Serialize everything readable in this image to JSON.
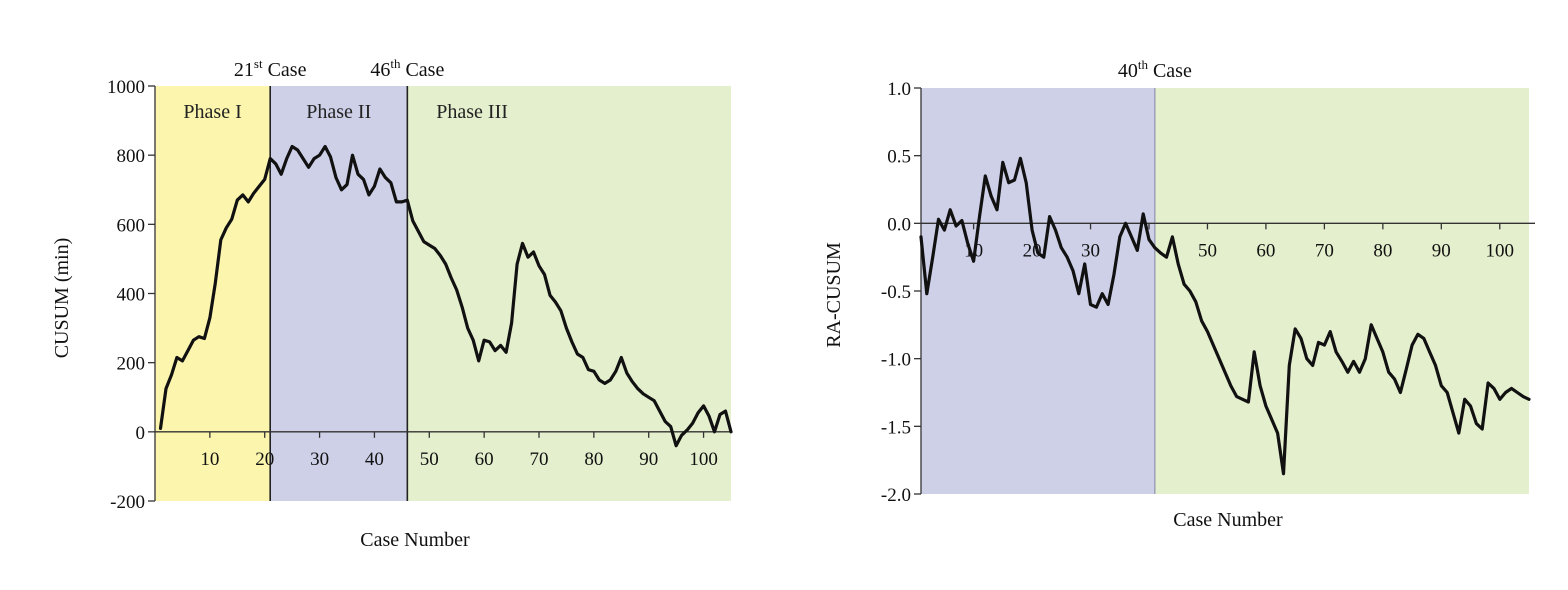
{
  "chart_data": [
    {
      "type": "line",
      "title": "",
      "xlabel": "Case Number",
      "ylabel": "CUSUM (min)",
      "xlim": [
        0,
        105
      ],
      "ylim": [
        -200,
        1000
      ],
      "x_ticks": [
        10,
        20,
        30,
        40,
        50,
        60,
        70,
        80,
        90,
        100
      ],
      "y_ticks": [
        -200,
        0,
        200,
        400,
        600,
        800,
        1000
      ],
      "grid": false,
      "regions": [
        {
          "label": "Phase I",
          "x_start": 0,
          "x_end": 21,
          "color": "#fbf5ad"
        },
        {
          "label": "Phase II",
          "x_start": 21,
          "x_end": 46,
          "color": "#ced0e8"
        },
        {
          "label": "Phase III",
          "x_start": 46,
          "x_end": 105,
          "color": "#e4efcd"
        }
      ],
      "annotations": [
        {
          "x": 21,
          "base": "21",
          "sup": "st",
          "rest": " Case"
        },
        {
          "x": 46,
          "base": "46",
          "sup": "th",
          "rest": " Case"
        }
      ],
      "series": [
        {
          "color": "#111111",
          "x": [
            1,
            2,
            3,
            4,
            5,
            6,
            7,
            8,
            9,
            10,
            11,
            12,
            13,
            14,
            15,
            16,
            17,
            18,
            19,
            20,
            21,
            22,
            23,
            24,
            25,
            26,
            27,
            28,
            29,
            30,
            31,
            32,
            33,
            34,
            35,
            36,
            37,
            38,
            39,
            40,
            41,
            42,
            43,
            44,
            45,
            46,
            47,
            48,
            49,
            50,
            51,
            52,
            53,
            54,
            55,
            56,
            57,
            58,
            59,
            60,
            61,
            62,
            63,
            64,
            65,
            66,
            67,
            68,
            69,
            70,
            71,
            72,
            73,
            74,
            75,
            76,
            77,
            78,
            79,
            80,
            81,
            82,
            83,
            84,
            85,
            86,
            87,
            88,
            89,
            90,
            91,
            92,
            93,
            94,
            95,
            96,
            97,
            98,
            99,
            100,
            101,
            102,
            103,
            104,
            105
          ],
          "y": [
            10,
            125,
            165,
            215,
            205,
            235,
            265,
            275,
            270,
            330,
            430,
            555,
            590,
            615,
            670,
            685,
            665,
            690,
            710,
            730,
            790,
            775,
            745,
            790,
            825,
            815,
            790,
            765,
            790,
            800,
            825,
            795,
            735,
            700,
            715,
            800,
            745,
            730,
            685,
            710,
            760,
            735,
            720,
            665,
            665,
            670,
            610,
            580,
            550,
            540,
            530,
            510,
            485,
            445,
            410,
            360,
            300,
            265,
            205,
            265,
            260,
            235,
            250,
            230,
            315,
            485,
            545,
            505,
            520,
            480,
            455,
            395,
            375,
            350,
            300,
            260,
            225,
            215,
            180,
            175,
            150,
            140,
            150,
            175,
            215,
            170,
            145,
            125,
            110,
            100,
            90,
            60,
            30,
            15,
            -40,
            -10,
            5,
            25,
            55,
            75,
            45,
            0,
            50,
            60,
            0
          ]
        }
      ]
    },
    {
      "type": "line",
      "title": "",
      "xlabel": "Case Number",
      "ylabel": "RA-CUSUM",
      "xlim": [
        1,
        105
      ],
      "ylim": [
        -2.0,
        1.0
      ],
      "x_ticks": [
        10,
        20,
        30,
        40,
        50,
        60,
        70,
        80,
        90,
        100
      ],
      "x_tick_labels": [
        "10",
        "20",
        "30",
        "",
        "50",
        "60",
        "70",
        "80",
        "90",
        "100"
      ],
      "y_ticks": [
        -2.0,
        -1.5,
        -1.0,
        -0.5,
        0.0,
        0.5,
        1.0
      ],
      "y_tick_labels": [
        "-2.0",
        "-1.5",
        "-1.0",
        "-0.5",
        "0.0",
        "0.5",
        "1.0"
      ],
      "grid": false,
      "regions": [
        {
          "label": "",
          "x_start": 1,
          "x_end": 41,
          "color": "#ced0e8"
        },
        {
          "label": "",
          "x_start": 41,
          "x_end": 105,
          "color": "#e4efcd"
        }
      ],
      "annotations": [
        {
          "x": 41,
          "base": "40",
          "sup": "th",
          "rest": " Case"
        }
      ],
      "series": [
        {
          "color": "#111111",
          "x": [
            1,
            2,
            3,
            4,
            5,
            6,
            7,
            8,
            9,
            10,
            11,
            12,
            13,
            14,
            15,
            16,
            17,
            18,
            19,
            20,
            21,
            22,
            23,
            24,
            25,
            26,
            27,
            28,
            29,
            30,
            31,
            32,
            33,
            34,
            35,
            36,
            37,
            38,
            39,
            40,
            41,
            42,
            43,
            44,
            45,
            46,
            47,
            48,
            49,
            50,
            51,
            52,
            53,
            54,
            55,
            56,
            57,
            58,
            59,
            60,
            61,
            62,
            63,
            64,
            65,
            66,
            67,
            68,
            69,
            70,
            71,
            72,
            73,
            74,
            75,
            76,
            77,
            78,
            79,
            80,
            81,
            82,
            83,
            84,
            85,
            86,
            87,
            88,
            89,
            90,
            91,
            92,
            93,
            94,
            95,
            96,
            97,
            98,
            99,
            100,
            101,
            102,
            103,
            104,
            105
          ],
          "y": [
            -0.1,
            -0.52,
            -0.25,
            0.03,
            -0.05,
            0.1,
            -0.02,
            0.02,
            -0.15,
            -0.28,
            0.05,
            0.35,
            0.2,
            0.1,
            0.45,
            0.3,
            0.32,
            0.48,
            0.3,
            -0.05,
            -0.22,
            -0.25,
            0.05,
            -0.05,
            -0.18,
            -0.25,
            -0.35,
            -0.52,
            -0.3,
            -0.6,
            -0.62,
            -0.52,
            -0.6,
            -0.38,
            -0.1,
            0.0,
            -0.1,
            -0.2,
            0.07,
            -0.12,
            -0.18,
            -0.22,
            -0.25,
            -0.1,
            -0.3,
            -0.45,
            -0.5,
            -0.58,
            -0.72,
            -0.8,
            -0.9,
            -1.0,
            -1.1,
            -1.2,
            -1.28,
            -1.3,
            -1.32,
            -0.95,
            -1.2,
            -1.35,
            -1.45,
            -1.55,
            -1.85,
            -1.05,
            -0.78,
            -0.85,
            -1.0,
            -1.05,
            -0.88,
            -0.9,
            -0.8,
            -0.95,
            -1.02,
            -1.1,
            -1.02,
            -1.1,
            -1.0,
            -0.75,
            -0.85,
            -0.95,
            -1.1,
            -1.15,
            -1.25,
            -1.08,
            -0.9,
            -0.82,
            -0.85,
            -0.95,
            -1.05,
            -1.2,
            -1.25,
            -1.4,
            -1.55,
            -1.3,
            -1.35,
            -1.48,
            -1.52,
            -1.18,
            -1.22,
            -1.3,
            -1.25,
            -1.22,
            -1.25,
            -1.28,
            -1.3
          ]
        }
      ]
    }
  ]
}
